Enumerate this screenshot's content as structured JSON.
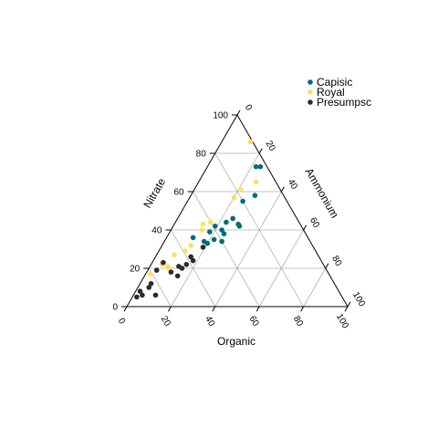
{
  "chart_data": {
    "type": "scatter",
    "subtype": "ternary",
    "axes": {
      "left": {
        "label": "Nitrate",
        "ticks": [
          "0",
          "20",
          "40",
          "60",
          "80",
          "100"
        ]
      },
      "right": {
        "label": "Ammonium",
        "ticks": [
          "0",
          "20",
          "40",
          "60",
          "80",
          "100"
        ]
      },
      "bottom": {
        "label": "Organic",
        "ticks": [
          "100",
          "80",
          "60",
          "40",
          "20",
          "0"
        ]
      }
    },
    "range": [
      0,
      100
    ],
    "grid": true,
    "legend_position": "top-right",
    "series": [
      {
        "name": "Capisic",
        "color": "#006e73",
        "points": [
          {
            "nitrate": 73,
            "ammonium": 22,
            "organic": 5
          },
          {
            "nitrate": 73,
            "ammonium": 24,
            "organic": 3
          },
          {
            "nitrate": 58,
            "ammonium": 29,
            "organic": 13
          },
          {
            "nitrate": 55,
            "ammonium": 25,
            "organic": 20
          },
          {
            "nitrate": 46,
            "ammonium": 25,
            "organic": 29
          },
          {
            "nitrate": 44,
            "ammonium": 23,
            "organic": 33
          },
          {
            "nitrate": 43,
            "ammonium": 29,
            "organic": 28
          },
          {
            "nitrate": 42,
            "ammonium": 30,
            "organic": 28
          },
          {
            "nitrate": 42,
            "ammonium": 19,
            "organic": 39
          },
          {
            "nitrate": 40,
            "ammonium": 23,
            "organic": 37
          },
          {
            "nitrate": 39,
            "ammonium": 18,
            "organic": 43
          },
          {
            "nitrate": 38,
            "ammonium": 25,
            "organic": 37
          },
          {
            "nitrate": 36,
            "ammonium": 12,
            "organic": 52
          },
          {
            "nitrate": 35,
            "ammonium": 22,
            "organic": 43
          },
          {
            "nitrate": 34,
            "ammonium": 18,
            "organic": 48
          },
          {
            "nitrate": 34,
            "ammonium": 26,
            "organic": 40
          },
          {
            "nitrate": 33,
            "ammonium": 20,
            "organic": 47
          }
        ]
      },
      {
        "name": "Royal",
        "color": "#fde061",
        "points": [
          {
            "nitrate": 86,
            "ammonium": 13,
            "organic": 1
          },
          {
            "nitrate": 65,
            "ammonium": 26,
            "organic": 9
          },
          {
            "nitrate": 61,
            "ammonium": 21,
            "organic": 18
          },
          {
            "nitrate": 57,
            "ammonium": 20,
            "organic": 23
          },
          {
            "nitrate": 44,
            "ammonium": 16,
            "organic": 40
          },
          {
            "nitrate": 43,
            "ammonium": 13,
            "organic": 44
          },
          {
            "nitrate": 40,
            "ammonium": 14,
            "organic": 46
          },
          {
            "nitrate": 32,
            "ammonium": 13,
            "organic": 55
          },
          {
            "nitrate": 29,
            "ammonium": 12,
            "organic": 59
          },
          {
            "nitrate": 27,
            "ammonium": 8,
            "organic": 65
          },
          {
            "nitrate": 22,
            "ammonium": 5,
            "organic": 73
          },
          {
            "nitrate": 21,
            "ammonium": 8,
            "organic": 71
          },
          {
            "nitrate": 20,
            "ammonium": 9,
            "organic": 71
          },
          {
            "nitrate": 17,
            "ammonium": 2,
            "organic": 81
          }
        ]
      },
      {
        "name": "Presumpsc",
        "color": "#2b2b2b",
        "points": [
          {
            "nitrate": 31,
            "ammonium": 19,
            "organic": 50
          },
          {
            "nitrate": 26,
            "ammonium": 16,
            "organic": 58
          },
          {
            "nitrate": 24,
            "ammonium": 18,
            "organic": 58
          },
          {
            "nitrate": 23,
            "ammonium": 5,
            "organic": 72
          },
          {
            "nitrate": 22,
            "ammonium": 16,
            "organic": 62
          },
          {
            "nitrate": 21,
            "ammonium": 13,
            "organic": 66
          },
          {
            "nitrate": 20,
            "ammonium": 15,
            "organic": 65
          },
          {
            "nitrate": 19,
            "ammonium": 4,
            "organic": 77
          },
          {
            "nitrate": 18,
            "ammonium": 11,
            "organic": 71
          },
          {
            "nitrate": 16,
            "ammonium": 15,
            "organic": 69
          },
          {
            "nitrate": 12,
            "ammonium": 5,
            "organic": 83
          },
          {
            "nitrate": 10,
            "ammonium": 5,
            "organic": 85
          },
          {
            "nitrate": 8,
            "ammonium": 2,
            "organic": 90
          },
          {
            "nitrate": 6,
            "ammonium": 10,
            "organic": 84
          },
          {
            "nitrate": 6,
            "ammonium": 4,
            "organic": 90
          },
          {
            "nitrate": 5,
            "ammonium": 2,
            "organic": 93
          }
        ]
      }
    ]
  }
}
